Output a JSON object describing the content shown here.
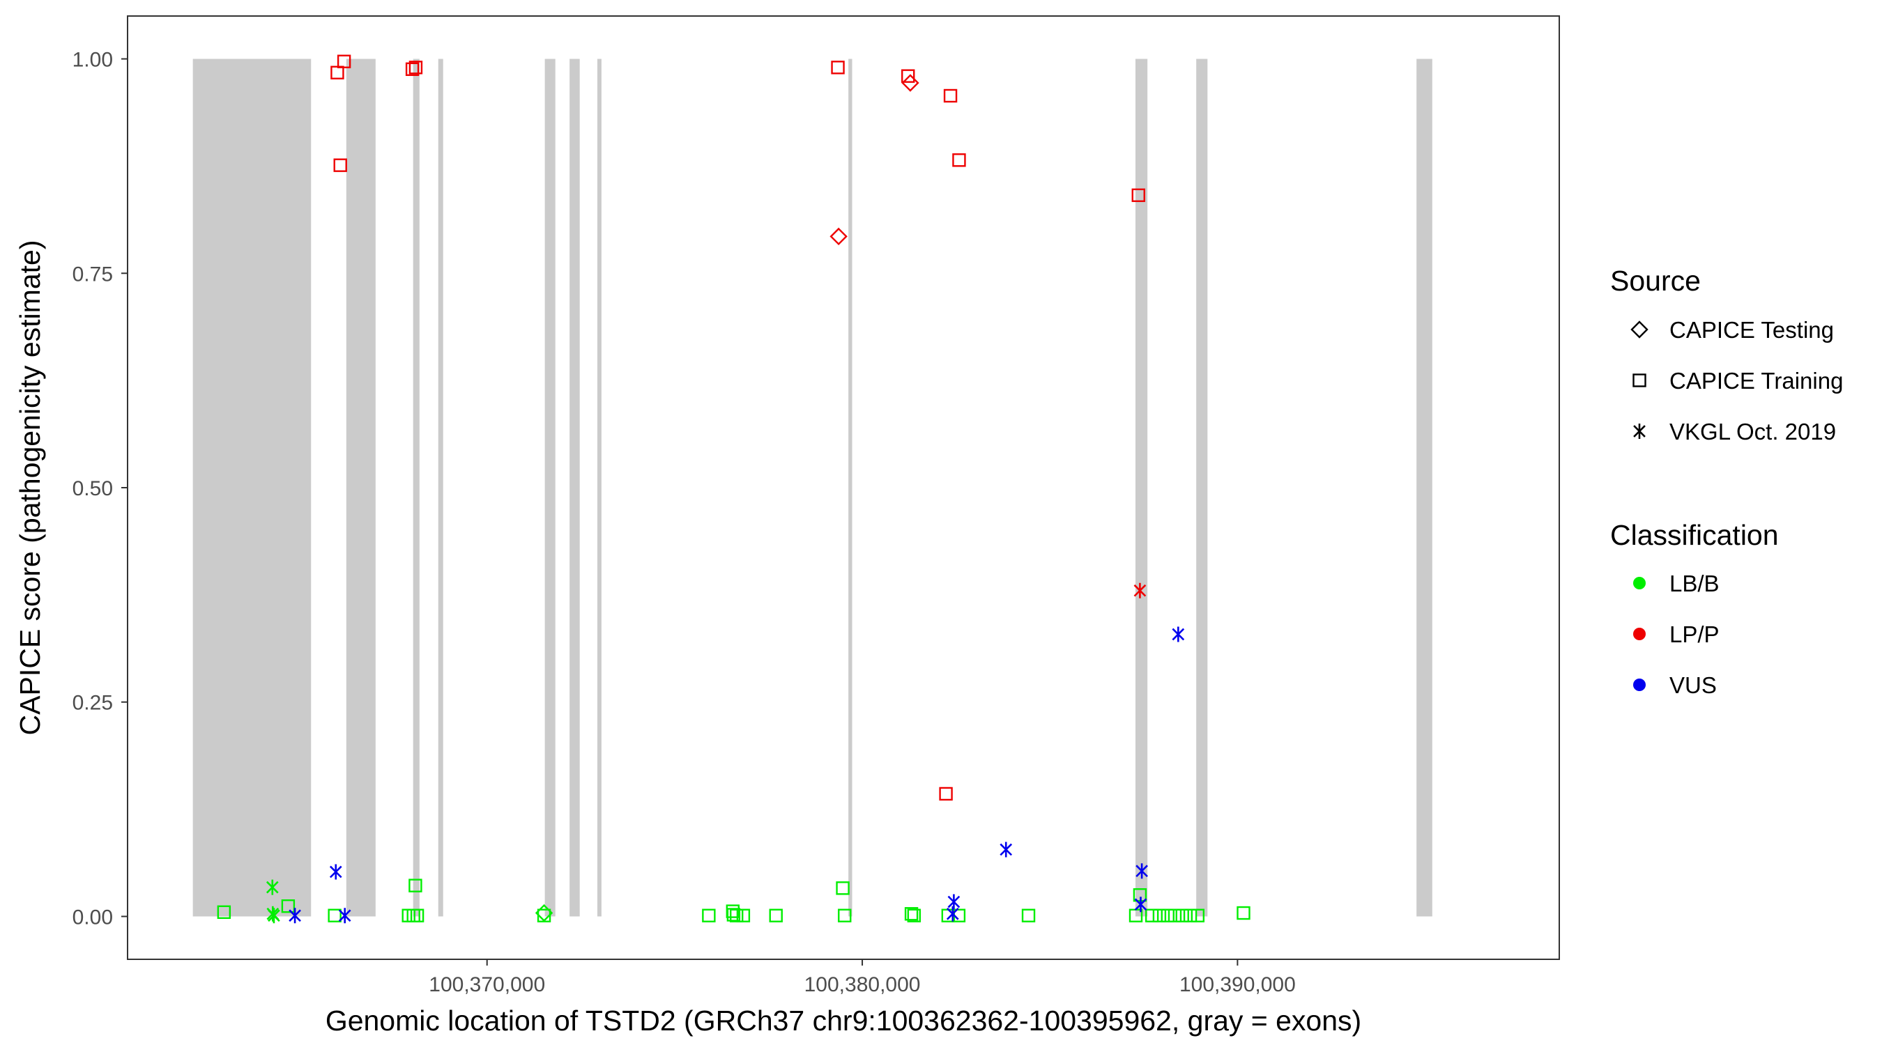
{
  "chart_data": {
    "type": "scatter",
    "xlabel": "Genomic location of TSTD2 (GRCh37 chr9:100362362-100395962, gray = exons)",
    "ylabel": "CAPICE score (pathogenicity estimate)",
    "xlim": [
      100360420,
      100398575
    ],
    "ylim": [
      -0.05,
      1.05
    ],
    "x_ticks": [
      {
        "value": 100370000,
        "label": "100,370,000"
      },
      {
        "value": 100380000,
        "label": "100,380,000"
      },
      {
        "value": 100390000,
        "label": "100,390,000"
      }
    ],
    "y_ticks": [
      {
        "value": 0.0,
        "label": "0.00"
      },
      {
        "value": 0.25,
        "label": "0.25"
      },
      {
        "value": 0.5,
        "label": "0.50"
      },
      {
        "value": 0.75,
        "label": "0.75"
      },
      {
        "value": 1.0,
        "label": "1.00"
      }
    ],
    "exons": [
      [
        100362160,
        100365310
      ],
      [
        100366250,
        100367030
      ],
      [
        100368030,
        100368200
      ],
      [
        100368700,
        100368830
      ],
      [
        100371540,
        100371820
      ],
      [
        100372200,
        100372470
      ],
      [
        100372940,
        100373050
      ],
      [
        100379630,
        100379730
      ],
      [
        100387280,
        100387600
      ],
      [
        100388900,
        100389200
      ],
      [
        100394770,
        100395190
      ]
    ],
    "grid": false,
    "legend_position": "right",
    "colors": {
      "LB/B": "#00ee00",
      "LP/P": "#ee0000",
      "VUS": "#0000ee",
      "exon": "#cbcbcb",
      "panel_border": "#333333"
    },
    "legend": {
      "source_title": "Source",
      "source_items": [
        {
          "label": "CAPICE Testing",
          "shape": "diamond"
        },
        {
          "label": "CAPICE Training",
          "shape": "square"
        },
        {
          "label": "VKGL Oct. 2019",
          "shape": "asterisk"
        }
      ],
      "classification_title": "Classification",
      "classification_items": [
        {
          "label": "LB/B",
          "color": "#00ee00"
        },
        {
          "label": "LP/P",
          "color": "#ee0000"
        },
        {
          "label": "VUS",
          "color": "#0000ee"
        }
      ]
    },
    "series": [
      {
        "source": "CAPICE Testing",
        "classification": "LP/P",
        "points": [
          [
            100381280,
            0.972
          ],
          [
            100379370,
            0.793
          ]
        ]
      },
      {
        "source": "CAPICE Testing",
        "classification": "LB/B",
        "points": [
          [
            100371520,
            0.004
          ]
        ]
      },
      {
        "source": "CAPICE Training",
        "classification": "LP/P",
        "points": [
          [
            100366190,
            0.997
          ],
          [
            100366010,
            0.984
          ],
          [
            100368100,
            0.99
          ],
          [
            100368010,
            0.988
          ],
          [
            100366090,
            0.876
          ],
          [
            100379350,
            0.99
          ],
          [
            100381220,
            0.98
          ],
          [
            100382350,
            0.957
          ],
          [
            100382580,
            0.882
          ],
          [
            100387360,
            0.841
          ],
          [
            100382230,
            0.143
          ]
        ]
      },
      {
        "source": "CAPICE Training",
        "classification": "LB/B",
        "points": [
          [
            100362990,
            0.005
          ],
          [
            100364700,
            0.012
          ],
          [
            100365940,
            0.001
          ],
          [
            100367910,
            0.001
          ],
          [
            100368040,
            0.001
          ],
          [
            100368090,
            0.036
          ],
          [
            100368140,
            0.001
          ],
          [
            100371520,
            0.001
          ],
          [
            100375910,
            0.001
          ],
          [
            100376550,
            0.006
          ],
          [
            100376570,
            0.002
          ],
          [
            100376650,
            0.001
          ],
          [
            100376830,
            0.001
          ],
          [
            100377700,
            0.001
          ],
          [
            100379480,
            0.033
          ],
          [
            100379530,
            0.001
          ],
          [
            100381310,
            0.003
          ],
          [
            100381380,
            0.001
          ],
          [
            100382290,
            0.001
          ],
          [
            100382570,
            0.001
          ],
          [
            100384430,
            0.001
          ],
          [
            100387290,
            0.001
          ],
          [
            100387400,
            0.025
          ],
          [
            100387720,
            0.001
          ],
          [
            100387920,
            0.001
          ],
          [
            100388140,
            0.001
          ],
          [
            100388330,
            0.001
          ],
          [
            100388530,
            0.001
          ],
          [
            100388740,
            0.001
          ],
          [
            100388940,
            0.001
          ],
          [
            100390160,
            0.004
          ]
        ]
      },
      {
        "source": "VKGL Oct. 2019",
        "classification": "LB/B",
        "points": [
          [
            100364280,
            0.034
          ],
          [
            100364290,
            0.003
          ],
          [
            100364320,
            0.001
          ]
        ]
      },
      {
        "source": "VKGL Oct. 2019",
        "classification": "LP/P",
        "points": [
          [
            100387400,
            0.38
          ]
        ]
      },
      {
        "source": "VKGL Oct. 2019",
        "classification": "VUS",
        "points": [
          [
            100365970,
            0.052
          ],
          [
            100364880,
            0.001
          ],
          [
            100366210,
            0.001
          ],
          [
            100382440,
            0.017
          ],
          [
            100382410,
            0.003
          ],
          [
            100383830,
            0.078
          ],
          [
            100387450,
            0.053
          ],
          [
            100387420,
            0.014
          ],
          [
            100388420,
            0.329
          ]
        ]
      }
    ]
  }
}
